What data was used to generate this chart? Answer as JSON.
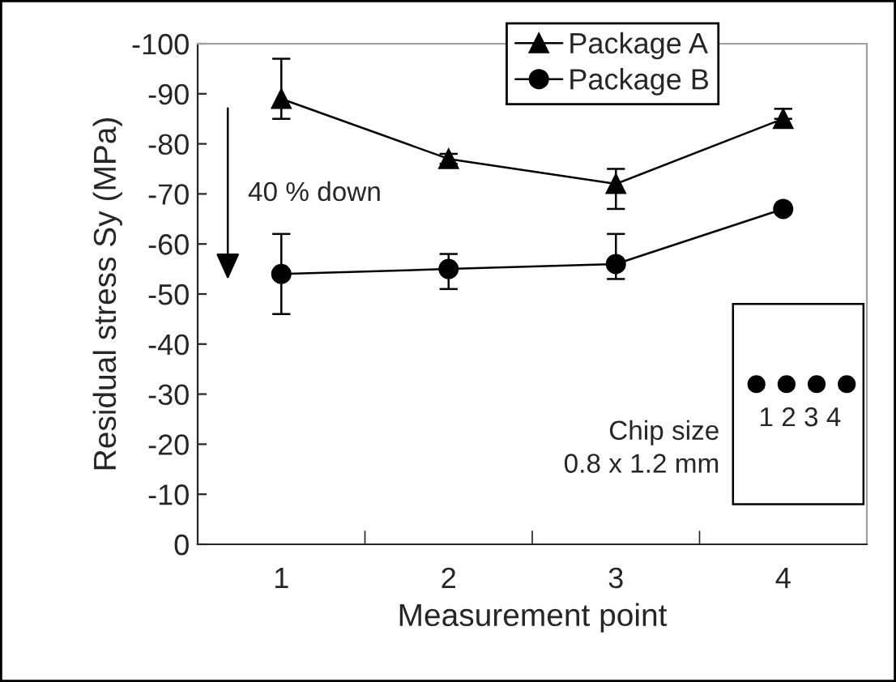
{
  "chart_data": {
    "type": "line",
    "xlabel": "Measurement point",
    "ylabel": "Residual stress Sy (MPa)",
    "categories": [
      "1",
      "2",
      "3",
      "4"
    ],
    "series": [
      {
        "name": "Package A",
        "color": "#000000",
        "marker": "triangle",
        "values": [
          -89,
          -77,
          -72,
          -85
        ],
        "errors": [
          [
            -97,
            -85
          ],
          [
            -78,
            -76
          ],
          [
            -75,
            -67
          ],
          [
            -87,
            -85
          ]
        ]
      },
      {
        "name": "Package B",
        "color": "#000000",
        "marker": "circle",
        "values": [
          -54,
          -55,
          -56,
          -67
        ],
        "errors": [
          [
            -62,
            -46
          ],
          [
            -58,
            -51
          ],
          [
            -62,
            -53
          ],
          null
        ]
      }
    ],
    "ylim": [
      0,
      -100
    ],
    "yticks": [
      0,
      -10,
      -20,
      -30,
      -40,
      -50,
      -60,
      -70,
      -80,
      -90,
      -100
    ],
    "grid": false,
    "legend": "top",
    "line_style": "solid",
    "annotations": [
      "40 % down",
      "Chip size\n0.8 x 1.2 mm",
      "1 2 3 4"
    ]
  }
}
